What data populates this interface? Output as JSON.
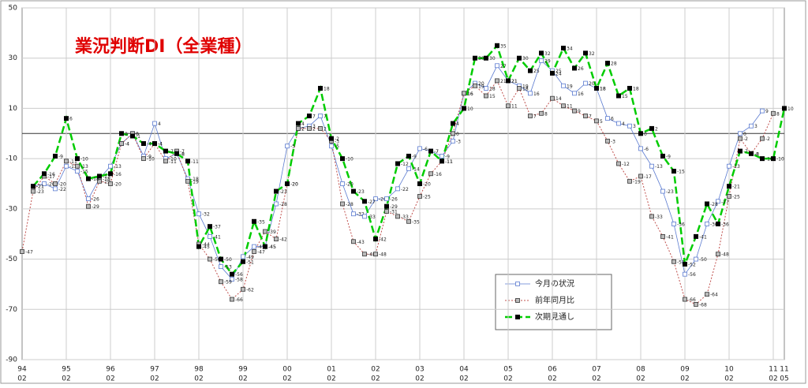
{
  "chart_data": {
    "type": "line",
    "title": "業況判断DI（全業種）",
    "categories": [
      [
        "94",
        "02"
      ],
      null,
      null,
      null,
      [
        "95",
        "02"
      ],
      null,
      null,
      null,
      [
        "96",
        "02"
      ],
      null,
      null,
      null,
      [
        "97",
        "02"
      ],
      null,
      null,
      null,
      [
        "98",
        "02"
      ],
      null,
      null,
      null,
      [
        "99",
        "02"
      ],
      null,
      null,
      null,
      [
        "00",
        "02"
      ],
      null,
      null,
      null,
      [
        "01",
        "02"
      ],
      null,
      null,
      null,
      [
        "02",
        "02"
      ],
      null,
      null,
      null,
      [
        "03",
        "02"
      ],
      null,
      null,
      null,
      [
        "04",
        "02"
      ],
      null,
      null,
      null,
      [
        "05",
        "02"
      ],
      null,
      null,
      null,
      [
        "06",
        "02"
      ],
      null,
      null,
      null,
      [
        "07",
        "02"
      ],
      null,
      null,
      null,
      [
        "08",
        "02"
      ],
      null,
      null,
      null,
      [
        "09",
        "02"
      ],
      null,
      null,
      null,
      [
        "10",
        "02"
      ],
      null,
      null,
      null,
      [
        "11",
        "02"
      ],
      [
        "11",
        "05"
      ]
    ],
    "series": [
      {
        "name": "今月の状況",
        "color": "#5b7bd0",
        "line_style": "solid",
        "marker": "open-square",
        "values": [
          null,
          -21,
          -20,
          -22,
          -13,
          -15,
          -26,
          -18,
          -13,
          -4,
          0,
          -9,
          4,
          -10,
          -8,
          -18,
          -32,
          -41,
          -53,
          -58,
          -49,
          -45,
          -45,
          -28,
          -5,
          2,
          3,
          7,
          -5,
          -20,
          -32,
          -33,
          -26,
          -26,
          -22,
          -14,
          -6,
          -7,
          -9,
          -3,
          16,
          20,
          18,
          27,
          21,
          19,
          16,
          29,
          25,
          19,
          16,
          20,
          18,
          6,
          4,
          3,
          -6,
          -13,
          -23,
          -36,
          -56,
          -50,
          -36,
          -27,
          -13,
          0,
          3,
          9,
          null,
          null
        ]
      },
      {
        "name": "前年同月比",
        "color": "#c0504d",
        "line_style": "dotted",
        "marker": "cross-square",
        "values": [
          -47,
          -23,
          -17,
          -20,
          -11,
          -13,
          -29,
          -19,
          -20,
          -4,
          0,
          -10,
          -4,
          -11,
          -7,
          -19,
          -44,
          -50,
          -59,
          -66,
          -62,
          -47,
          -39,
          -42,
          -20,
          2,
          2,
          2,
          -3,
          -28,
          -43,
          -48,
          -48,
          -31,
          -33,
          -35,
          -25,
          -16,
          -11,
          0,
          16,
          19,
          15,
          21,
          11,
          18,
          7,
          8,
          14,
          11,
          9,
          7,
          5,
          -3,
          -12,
          -19,
          -17,
          -33,
          -41,
          -51,
          -66,
          -68,
          -64,
          -48,
          -25,
          -2,
          -8,
          -2,
          8,
          null
        ]
      },
      {
        "name": "次期見通し",
        "color": "#00cc00",
        "line_style": "dashed",
        "marker": "filled-square",
        "values": [
          null,
          -21,
          -16,
          -9,
          6,
          -10,
          -18,
          -17,
          -16,
          0,
          -1,
          -4,
          -4,
          -7,
          -8,
          -11,
          -45,
          -37,
          -50,
          -56,
          -51,
          -35,
          -45,
          -23,
          -20,
          4,
          7,
          18,
          -2,
          -10,
          -23,
          -27,
          -42,
          -29,
          -12,
          -9,
          -20,
          -7,
          -11,
          4,
          10,
          30,
          30,
          35,
          21,
          30,
          25,
          32,
          24,
          34,
          26,
          32,
          18,
          28,
          15,
          18,
          0,
          2,
          -9,
          -15,
          -52,
          -41,
          -28,
          -36,
          -21,
          -7,
          -8,
          -10,
          -10,
          10
        ]
      }
    ],
    "ylim": [
      -90,
      50
    ],
    "yticks": [
      -90,
      -70,
      -50,
      -30,
      -10,
      10,
      30,
      50
    ],
    "grid": true
  }
}
